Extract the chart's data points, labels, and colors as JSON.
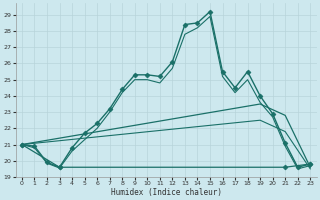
{
  "xlabel": "Humidex (Indice chaleur)",
  "xlim": [
    -0.5,
    23.5
  ],
  "ylim": [
    19.0,
    29.7
  ],
  "yticks": [
    19,
    20,
    21,
    22,
    23,
    24,
    25,
    26,
    27,
    28,
    29
  ],
  "xticks": [
    0,
    1,
    2,
    3,
    4,
    5,
    6,
    7,
    8,
    9,
    10,
    11,
    12,
    13,
    14,
    15,
    16,
    17,
    18,
    19,
    20,
    21,
    22,
    23
  ],
  "bg_color": "#cde8ee",
  "grid_color": "#b8d4da",
  "line_color": "#1a7068",
  "series": [
    {
      "x": [
        0,
        1,
        2,
        3,
        4,
        5,
        6,
        7,
        8,
        9,
        10,
        11,
        12,
        13,
        14,
        15,
        16,
        17,
        18,
        19,
        20,
        21,
        22,
        23
      ],
      "y": [
        21.0,
        20.9,
        19.9,
        19.6,
        20.8,
        21.7,
        22.3,
        23.2,
        24.4,
        25.3,
        25.3,
        25.2,
        26.1,
        28.4,
        28.5,
        29.2,
        25.5,
        24.5,
        25.5,
        24.0,
        22.9,
        21.1,
        19.6,
        19.8
      ],
      "has_markers": true,
      "linewidth": 1.0
    },
    {
      "x": [
        0,
        1,
        2,
        3,
        4,
        5,
        6,
        7,
        8,
        9,
        10,
        11,
        12,
        13,
        14,
        15,
        16,
        17,
        18,
        19,
        20,
        21,
        22,
        23
      ],
      "y": [
        21.0,
        20.8,
        19.85,
        19.55,
        20.6,
        21.3,
        22.0,
        23.0,
        24.2,
        25.0,
        25.0,
        24.8,
        25.7,
        27.8,
        28.2,
        28.9,
        25.2,
        24.2,
        25.0,
        23.6,
        22.7,
        20.9,
        19.5,
        19.7
      ],
      "has_markers": false,
      "linewidth": 0.8
    },
    {
      "x": [
        0,
        3,
        21,
        23
      ],
      "y": [
        21.0,
        19.6,
        19.6,
        19.8
      ],
      "has_markers": true,
      "linewidth": 0.9
    },
    {
      "x": [
        0,
        19,
        21,
        23
      ],
      "y": [
        21.0,
        23.5,
        22.8,
        19.6
      ],
      "has_markers": false,
      "linewidth": 0.9
    },
    {
      "x": [
        0,
        19,
        21,
        23
      ],
      "y": [
        21.0,
        22.5,
        21.8,
        19.5
      ],
      "has_markers": false,
      "linewidth": 0.8
    }
  ]
}
